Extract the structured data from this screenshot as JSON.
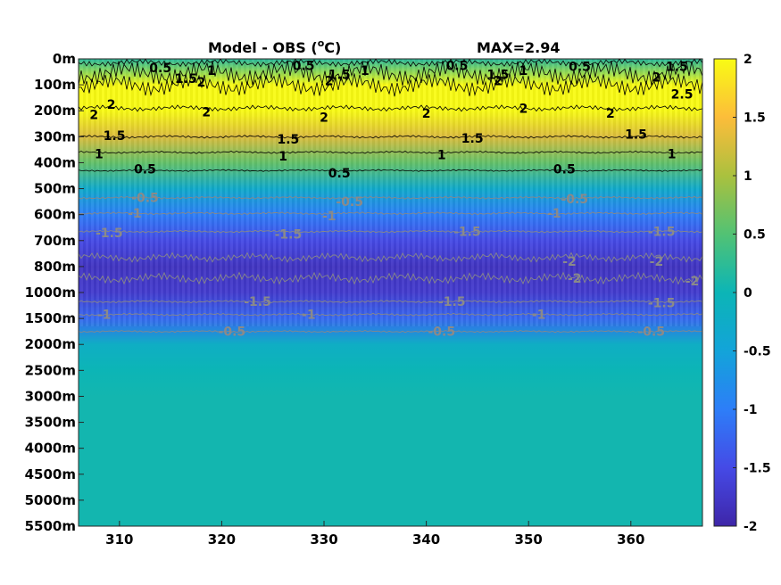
{
  "chart_data": {
    "type": "heatmap",
    "title": "Model - OBS (°C)",
    "title_prefix": "Model - OBS (",
    "title_sup": "o",
    "title_suffix": "C)",
    "max_label": "MAX=2.94",
    "xlim": [
      306,
      367
    ],
    "x_ticks": [
      {
        "value": 310,
        "label": "310"
      },
      {
        "value": 320,
        "label": "320"
      },
      {
        "value": 330,
        "label": "330"
      },
      {
        "value": 340,
        "label": "340"
      },
      {
        "value": 350,
        "label": "350"
      },
      {
        "value": 360,
        "label": "360"
      }
    ],
    "y_ticks": [
      "0m",
      "100m",
      "200m",
      "300m",
      "400m",
      "500m",
      "600m",
      "700m",
      "800m",
      "1000m",
      "1500m",
      "2000m",
      "2500m",
      "3000m",
      "3500m",
      "4000m",
      "4500m",
      "5000m",
      "5500m"
    ],
    "colorbar": {
      "clim": [
        -2,
        2
      ],
      "ticks": [
        {
          "value": 2,
          "label": "2"
        },
        {
          "value": 1.5,
          "label": "1.5"
        },
        {
          "value": 1,
          "label": "1"
        },
        {
          "value": 0.5,
          "label": "0.5"
        },
        {
          "value": 0,
          "label": "0"
        },
        {
          "value": -0.5,
          "label": "-0.5"
        },
        {
          "value": -1,
          "label": "-1"
        },
        {
          "value": -1.5,
          "label": "-1.5"
        },
        {
          "value": -2,
          "label": "-2"
        }
      ],
      "colormap": "parula"
    },
    "depth_profile": [
      {
        "depth": "0m",
        "value": 0.2
      },
      {
        "depth": "100m",
        "value": 2.5
      },
      {
        "depth": "200m",
        "value": 2.1
      },
      {
        "depth": "300m",
        "value": 1.3
      },
      {
        "depth": "400m",
        "value": 0.6
      },
      {
        "depth": "500m",
        "value": -0.3
      },
      {
        "depth": "600m",
        "value": -1.0
      },
      {
        "depth": "700m",
        "value": -1.5
      },
      {
        "depth": "800m",
        "value": -1.8
      },
      {
        "depth": "1000m",
        "value": -1.7
      },
      {
        "depth": "1500m",
        "value": -1.2
      },
      {
        "depth": "2000m",
        "value": -0.2
      },
      {
        "depth": "2500m",
        "value": 0.0
      },
      {
        "depth": "3000m",
        "value": 0.05
      },
      {
        "depth": "3500m",
        "value": 0.05
      },
      {
        "depth": "4000m",
        "value": 0.05
      },
      {
        "depth": "4500m",
        "value": 0.05
      },
      {
        "depth": "5000m",
        "value": 0.05
      },
      {
        "depth": "5500m",
        "value": 0.05
      }
    ],
    "contour_labels": [
      {
        "text": "0.5",
        "x": 314,
        "depth": 0.35,
        "color": "black"
      },
      {
        "text": "1.5",
        "x": 316.5,
        "depth": 0.75,
        "color": "black"
      },
      {
        "text": "1",
        "x": 319,
        "depth": 0.45,
        "color": "black"
      },
      {
        "text": "2",
        "x": 318,
        "depth": 0.9,
        "color": "black"
      },
      {
        "text": "0.5",
        "x": 328,
        "depth": 0.25,
        "color": "black"
      },
      {
        "text": "1.5",
        "x": 331.5,
        "depth": 0.6,
        "color": "black"
      },
      {
        "text": "1",
        "x": 334,
        "depth": 0.45,
        "color": "black"
      },
      {
        "text": "2",
        "x": 330.5,
        "depth": 0.85,
        "color": "black"
      },
      {
        "text": "0.5",
        "x": 343,
        "depth": 0.25,
        "color": "black"
      },
      {
        "text": "1.5",
        "x": 347,
        "depth": 0.6,
        "color": "black"
      },
      {
        "text": "1",
        "x": 349.5,
        "depth": 0.45,
        "color": "black"
      },
      {
        "text": "2",
        "x": 347,
        "depth": 0.85,
        "color": "black"
      },
      {
        "text": "0.5",
        "x": 355,
        "depth": 0.3,
        "color": "black"
      },
      {
        "text": "1.5",
        "x": 364.5,
        "depth": 0.3,
        "color": "black"
      },
      {
        "text": "2",
        "x": 362.5,
        "depth": 0.7,
        "color": "black"
      },
      {
        "text": "2.5",
        "x": 365,
        "depth": 1.35,
        "color": "black"
      },
      {
        "text": "2",
        "x": 307.5,
        "depth": 2.15,
        "color": "black"
      },
      {
        "text": "2",
        "x": 309.2,
        "depth": 1.75,
        "color": "black"
      },
      {
        "text": "2",
        "x": 318.5,
        "depth": 2.05,
        "color": "black"
      },
      {
        "text": "2",
        "x": 330,
        "depth": 2.25,
        "color": "black"
      },
      {
        "text": "2",
        "x": 340,
        "depth": 2.1,
        "color": "black"
      },
      {
        "text": "2",
        "x": 349.5,
        "depth": 1.9,
        "color": "black"
      },
      {
        "text": "2",
        "x": 358,
        "depth": 2.1,
        "color": "black"
      },
      {
        "text": "1.5",
        "x": 309.5,
        "depth": 2.95,
        "color": "black"
      },
      {
        "text": "1.5",
        "x": 326.5,
        "depth": 3.1,
        "color": "black"
      },
      {
        "text": "1.5",
        "x": 344.5,
        "depth": 3.05,
        "color": "black"
      },
      {
        "text": "1.5",
        "x": 360.5,
        "depth": 2.9,
        "color": "black"
      },
      {
        "text": "1",
        "x": 308,
        "depth": 3.65,
        "color": "black"
      },
      {
        "text": "1",
        "x": 326,
        "depth": 3.75,
        "color": "black"
      },
      {
        "text": "1",
        "x": 341.5,
        "depth": 3.7,
        "color": "black"
      },
      {
        "text": "1",
        "x": 364,
        "depth": 3.65,
        "color": "black"
      },
      {
        "text": "0.5",
        "x": 312.5,
        "depth": 4.25,
        "color": "black"
      },
      {
        "text": "0.5",
        "x": 331.5,
        "depth": 4.4,
        "color": "black"
      },
      {
        "text": "0.5",
        "x": 353.5,
        "depth": 4.25,
        "color": "black"
      },
      {
        "text": "-0.5",
        "x": 312.5,
        "depth": 5.35,
        "color": "gray"
      },
      {
        "text": "-0.5",
        "x": 332.5,
        "depth": 5.5,
        "color": "gray"
      },
      {
        "text": "-0.5",
        "x": 354.5,
        "depth": 5.4,
        "color": "gray"
      },
      {
        "text": "-1",
        "x": 311.5,
        "depth": 5.95,
        "color": "gray"
      },
      {
        "text": "-1",
        "x": 330.5,
        "depth": 6.05,
        "color": "gray"
      },
      {
        "text": "-1",
        "x": 352.5,
        "depth": 5.95,
        "color": "gray"
      },
      {
        "text": "-1.5",
        "x": 309,
        "depth": 6.7,
        "color": "gray"
      },
      {
        "text": "-1.5",
        "x": 326.5,
        "depth": 6.75,
        "color": "gray"
      },
      {
        "text": "-1.5",
        "x": 344,
        "depth": 6.65,
        "color": "gray"
      },
      {
        "text": "-1.5",
        "x": 363,
        "depth": 6.65,
        "color": "gray"
      },
      {
        "text": "-2",
        "x": 354,
        "depth": 7.8,
        "color": "gray"
      },
      {
        "text": "-2",
        "x": 362.5,
        "depth": 7.8,
        "color": "gray"
      },
      {
        "text": "-2",
        "x": 354.5,
        "depth": 8.45,
        "color": "gray"
      },
      {
        "text": "-2",
        "x": 366,
        "depth": 8.55,
        "color": "gray"
      },
      {
        "text": "-1.5",
        "x": 323.5,
        "depth": 9.35,
        "color": "gray"
      },
      {
        "text": "-1.5",
        "x": 342.5,
        "depth": 9.35,
        "color": "gray"
      },
      {
        "text": "-1.5",
        "x": 363,
        "depth": 9.4,
        "color": "gray"
      },
      {
        "text": "-1",
        "x": 308.5,
        "depth": 9.85,
        "color": "gray"
      },
      {
        "text": "-1",
        "x": 328.5,
        "depth": 9.85,
        "color": "gray"
      },
      {
        "text": "-1",
        "x": 351,
        "depth": 9.85,
        "color": "gray"
      },
      {
        "text": "-0.5",
        "x": 321,
        "depth": 10.5,
        "color": "gray"
      },
      {
        "text": "-0.5",
        "x": 341.5,
        "depth": 10.5,
        "color": "gray"
      },
      {
        "text": "-0.5",
        "x": 362,
        "depth": 10.5,
        "color": "gray"
      }
    ]
  }
}
